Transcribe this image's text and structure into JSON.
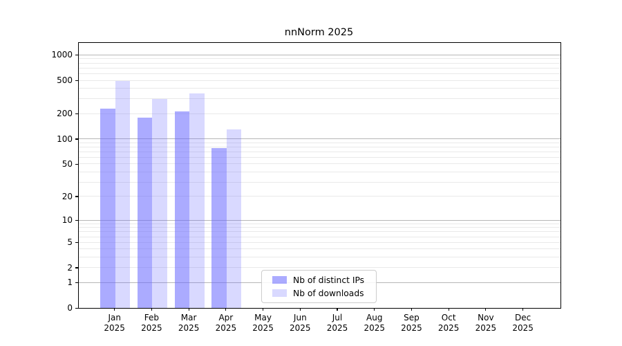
{
  "chart_data": {
    "type": "bar",
    "title": "nnNorm 2025",
    "categories": [
      "Jan",
      "Feb",
      "Mar",
      "Apr",
      "May",
      "Jun",
      "Jul",
      "Aug",
      "Sep",
      "Oct",
      "Nov",
      "Dec"
    ],
    "year_label": "2025",
    "series": [
      {
        "name": "Nb of distinct IPs",
        "slug": "distinct-ips",
        "color": "rgba(102,102,255,0.55)",
        "values": [
          230,
          180,
          215,
          77,
          0,
          0,
          0,
          0,
          0,
          0,
          0,
          0
        ]
      },
      {
        "name": "Nb of downloads",
        "slug": "downloads",
        "color": "rgba(102,102,255,0.25)",
        "values": [
          495,
          300,
          352,
          129,
          0,
          0,
          0,
          0,
          0,
          0,
          0,
          0
        ]
      }
    ],
    "yticks": [
      0,
      1,
      2,
      5,
      10,
      20,
      50,
      100,
      200,
      500,
      1000
    ],
    "yscale": "log1p",
    "ylim": [
      0,
      1390
    ],
    "grid": "horizontal major+minor",
    "legend_position": "inside-bottom-center",
    "colors": {
      "bar_base": "#6666ff",
      "grid_major": "#b6b6b6",
      "grid_minor": "#e9e9e9",
      "frame": "#000000",
      "background": "#ffffff"
    }
  }
}
